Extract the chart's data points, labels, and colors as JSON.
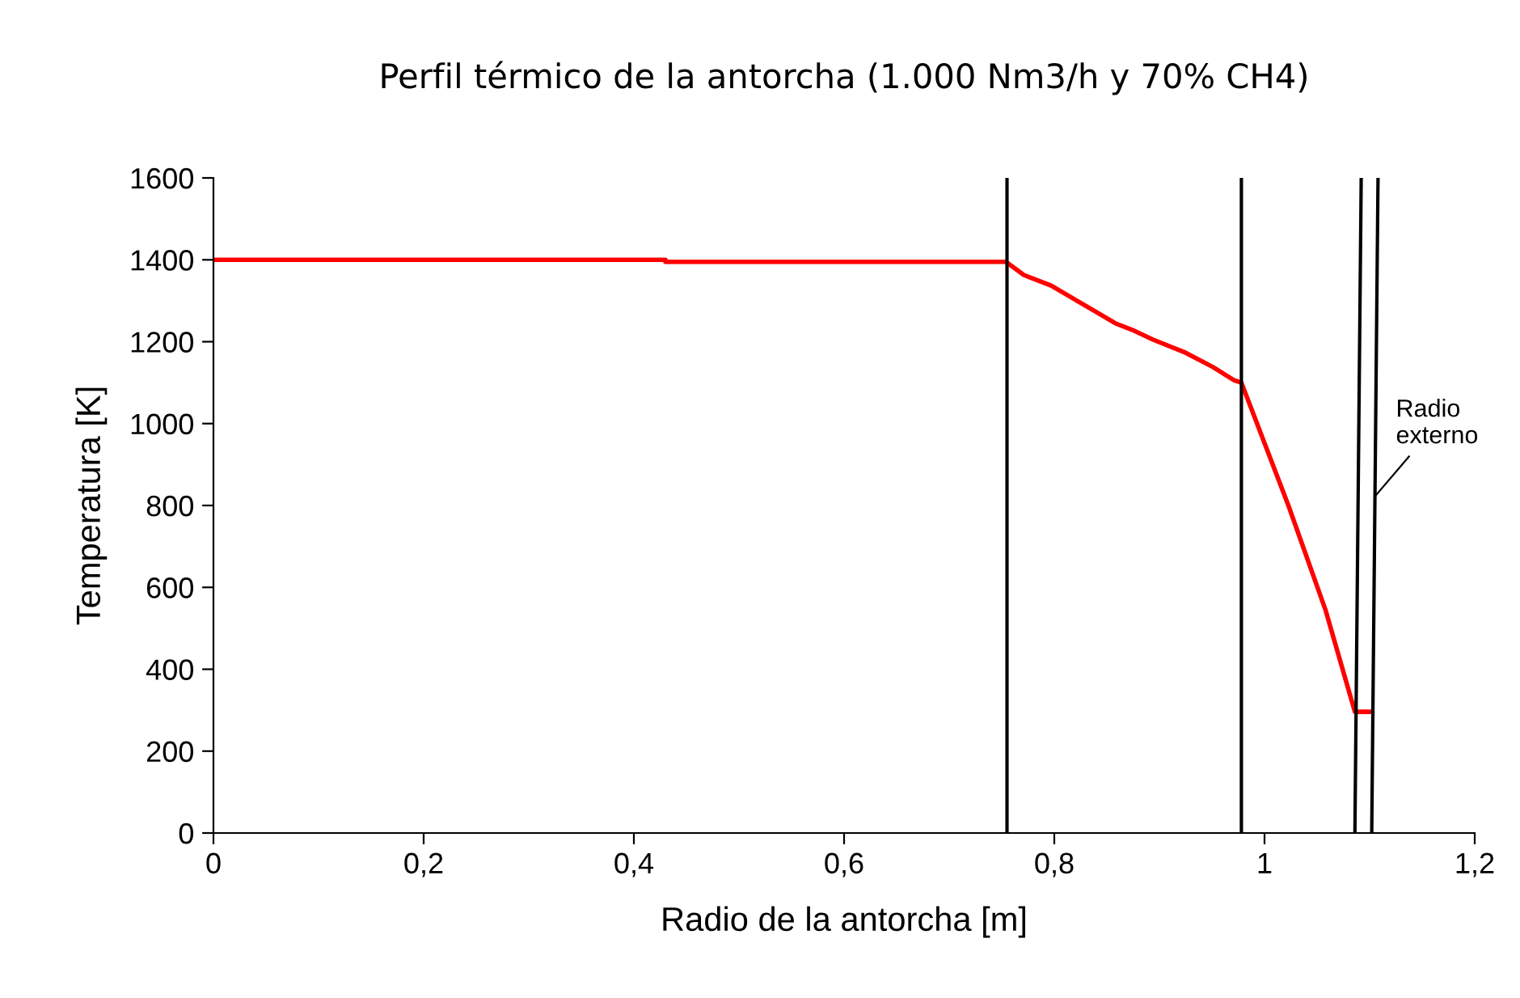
{
  "chart_data": {
    "type": "line",
    "title": "Perfil térmico de la antorcha (1.000 Nm3/h y 70% CH4)",
    "xlabel": "Radio de la antorcha [m]",
    "ylabel": "Temperatura [K]",
    "series": [
      {
        "color": "#ff0000",
        "x": [
          0,
          0.43,
          0.43,
          0.754,
          0.771,
          0.797,
          0.817,
          0.843,
          0.858,
          0.874,
          0.894,
          0.925,
          0.951,
          0.971,
          0.978,
          1.023,
          1.058,
          1.086,
          1.1
        ],
        "values": [
          1400,
          1400,
          1395,
          1395,
          1363,
          1337,
          1307,
          1268,
          1245,
          1229,
          1205,
          1173,
          1138,
          1106,
          1100,
          798,
          545,
          296,
          296
        ]
      },
      {
        "color": "#000000",
        "x": [
          0.755,
          0.755
        ],
        "values": [
          1600,
          0
        ]
      },
      {
        "color": "#000000",
        "x": [
          0.978,
          0.978
        ],
        "values": [
          1600,
          0
        ]
      },
      {
        "color": "#000000",
        "x": [
          1.092,
          1.086
        ],
        "values": [
          1600,
          0
        ]
      },
      {
        "color": "#000000",
        "x": [
          1.108,
          1.102
        ],
        "values": [
          1600,
          0
        ]
      }
    ],
    "annotations": [
      {
        "text": "Radio\nexterno",
        "x": 1.105,
        "y": 822
      }
    ],
    "xlim": [
      0,
      1.2
    ],
    "xticks": [
      0,
      {
        "value": 0.2,
        "label": "0,2"
      },
      {
        "value": 0.4,
        "label": "0,4"
      },
      {
        "value": 0.6,
        "label": "0,6"
      },
      {
        "value": 0.8,
        "label": "0,8"
      },
      1,
      {
        "value": 1.2,
        "label": "1,2"
      }
    ],
    "ylim": [
      0,
      1600
    ],
    "yticks": [
      0,
      200,
      400,
      600,
      800,
      1000,
      1200,
      1400,
      1600
    ],
    "grid": false,
    "legend": false,
    "marker": "none",
    "line_style": "solid"
  }
}
